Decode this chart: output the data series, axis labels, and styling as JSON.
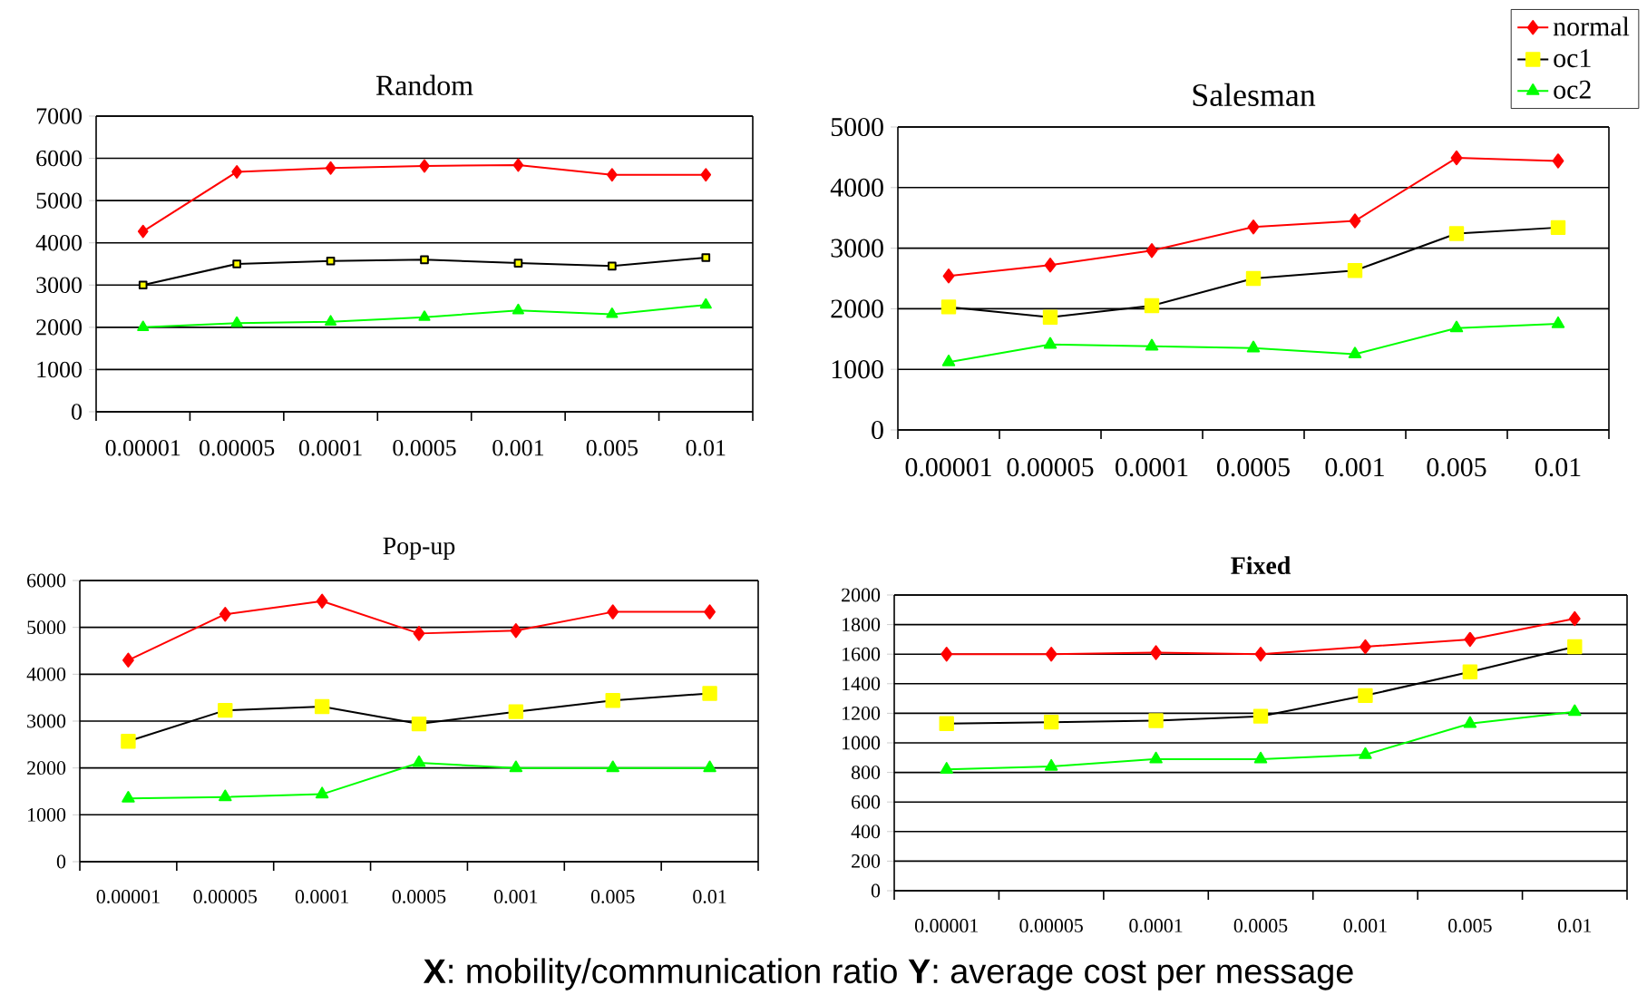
{
  "chart_data": [
    {
      "type": "line",
      "title": "Random",
      "categories": [
        "0.00001",
        "0.00005",
        "0.0001",
        "0.0005",
        "0.001",
        "0.005",
        "0.01"
      ],
      "ylim": [
        0,
        7000
      ],
      "yticks": [
        0,
        1000,
        2000,
        3000,
        4000,
        5000,
        6000,
        7000
      ],
      "grid": "y",
      "series": [
        {
          "color": "#ff0000",
          "marker": "diamond",
          "values": [
            4270,
            5680,
            5770,
            5820,
            5840,
            5610,
            5610
          ]
        },
        {
          "color": "#ffff00",
          "marker": "square",
          "values": [
            3000,
            3500,
            3570,
            3600,
            3520,
            3450,
            3650
          ]
        },
        {
          "color": "#00ff00",
          "marker": "triangle",
          "values": [
            2000,
            2100,
            2130,
            2240,
            2400,
            2310,
            2530
          ]
        }
      ]
    },
    {
      "type": "line",
      "title": "Salesman",
      "categories": [
        "0.00001",
        "0.00005",
        "0.0001",
        "0.0005",
        "0.001",
        "0.005",
        "0.01"
      ],
      "ylim": [
        0,
        5000
      ],
      "yticks": [
        0,
        1000,
        2000,
        3000,
        4000,
        5000
      ],
      "grid": "y",
      "legend": "top right",
      "series": [
        {
          "name": "normal",
          "color": "#ff0000",
          "marker": "diamond",
          "values": [
            2540,
            2720,
            2960,
            3350,
            3450,
            4490,
            4440
          ]
        },
        {
          "name": "oc1",
          "color": "#ffff00",
          "marker": "square",
          "values": [
            2030,
            1860,
            2050,
            2500,
            2630,
            3240,
            3340
          ]
        },
        {
          "name": "oc2",
          "color": "#00ff00",
          "marker": "triangle",
          "values": [
            1120,
            1410,
            1380,
            1350,
            1250,
            1680,
            1750
          ]
        }
      ]
    },
    {
      "type": "line",
      "title": "Pop-up",
      "categories": [
        "0.00001",
        "0.00005",
        "0.0001",
        "0.0005",
        "0.001",
        "0.005",
        "0.01"
      ],
      "ylim": [
        0,
        6000
      ],
      "yticks": [
        0,
        1000,
        2000,
        3000,
        4000,
        5000,
        6000
      ],
      "grid": "y",
      "series": [
        {
          "color": "#ff0000",
          "marker": "diamond",
          "values": [
            4300,
            5280,
            5560,
            4870,
            4930,
            5330,
            5330
          ]
        },
        {
          "color": "#ffff00",
          "marker": "square",
          "values": [
            2570,
            3230,
            3310,
            2940,
            3200,
            3440,
            3590
          ]
        },
        {
          "color": "#00ff00",
          "marker": "triangle",
          "values": [
            1350,
            1380,
            1440,
            2110,
            2000,
            2000,
            2000
          ]
        }
      ]
    },
    {
      "type": "line",
      "title": "Fixed",
      "categories": [
        "0.00001",
        "0.00005",
        "0.0001",
        "0.0005",
        "0.001",
        "0.005",
        "0.01"
      ],
      "ylim": [
        0,
        2000
      ],
      "yticks": [
        0,
        200,
        400,
        600,
        800,
        1000,
        1200,
        1400,
        1600,
        1800,
        2000
      ],
      "grid": "y",
      "annotations": [
        "**X**: mobility/communication ratio  **Y**: average cost per message"
      ],
      "series": [
        {
          "color": "#ff0000",
          "marker": "diamond",
          "values": [
            1600,
            1600,
            1610,
            1600,
            1650,
            1700,
            1840
          ]
        },
        {
          "color": "#ffff00",
          "marker": "square",
          "values": [
            1130,
            1140,
            1150,
            1180,
            1320,
            1480,
            1650
          ]
        },
        {
          "color": "#00ff00",
          "marker": "triangle",
          "values": [
            820,
            840,
            890,
            890,
            920,
            1130,
            1210
          ]
        }
      ]
    }
  ]
}
